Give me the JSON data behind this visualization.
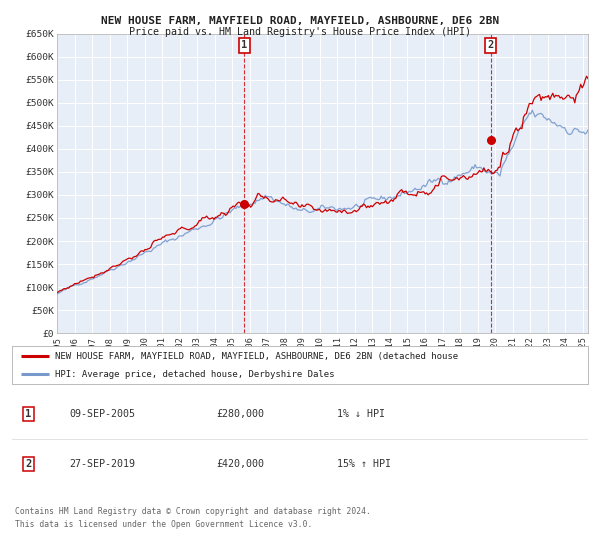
{
  "title1": "NEW HOUSE FARM, MAYFIELD ROAD, MAYFIELD, ASHBOURNE, DE6 2BN",
  "title2": "Price paid vs. HM Land Registry's House Price Index (HPI)",
  "ylim": [
    0,
    650000
  ],
  "yticks": [
    0,
    50000,
    100000,
    150000,
    200000,
    250000,
    300000,
    350000,
    400000,
    450000,
    500000,
    550000,
    600000,
    650000
  ],
  "ytick_labels": [
    "£0",
    "£50K",
    "£100K",
    "£150K",
    "£200K",
    "£250K",
    "£300K",
    "£350K",
    "£400K",
    "£450K",
    "£500K",
    "£550K",
    "£600K",
    "£650K"
  ],
  "xlim_start": 1995.0,
  "xlim_end": 2025.3,
  "xticks": [
    1995,
    1996,
    1997,
    1998,
    1999,
    2000,
    2001,
    2002,
    2003,
    2004,
    2005,
    2006,
    2007,
    2008,
    2009,
    2010,
    2011,
    2012,
    2013,
    2014,
    2015,
    2016,
    2017,
    2018,
    2019,
    2020,
    2021,
    2022,
    2023,
    2024,
    2025
  ],
  "line1_color": "#cc0000",
  "line2_color": "#7799cc",
  "sale1_x": 2005.69,
  "sale1_y": 280000,
  "sale2_x": 2019.74,
  "sale2_y": 420000,
  "vline1_x": 2005.69,
  "vline2_x": 2019.74,
  "legend1_label": "NEW HOUSE FARM, MAYFIELD ROAD, MAYFIELD, ASHBOURNE, DE6 2BN (detached house",
  "legend2_label": "HPI: Average price, detached house, Derbyshire Dales",
  "table_row1": [
    "1",
    "09-SEP-2005",
    "£280,000",
    "1% ↓ HPI"
  ],
  "table_row2": [
    "2",
    "27-SEP-2019",
    "£420,000",
    "15% ↑ HPI"
  ],
  "footer1": "Contains HM Land Registry data © Crown copyright and database right 2024.",
  "footer2": "This data is licensed under the Open Government Licence v3.0.",
  "bg_color": "#ffffff",
  "plot_bg_color": "#e8eef8",
  "grid_color": "#ffffff"
}
